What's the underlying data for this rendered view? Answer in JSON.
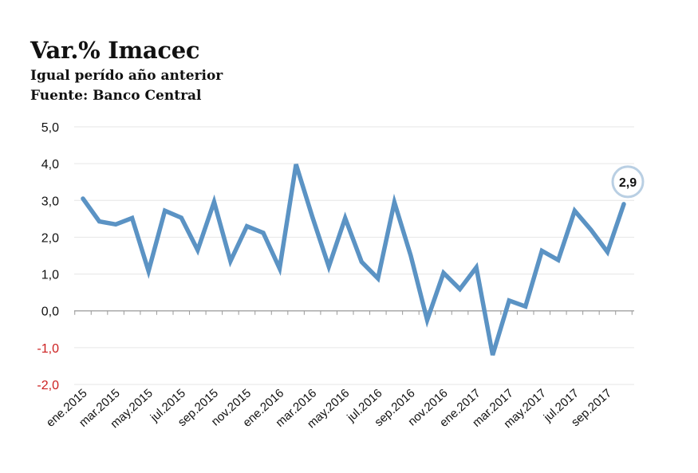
{
  "header": {
    "title": "Var.% Imacec",
    "subtitle": "Igual perído año anterior",
    "source": "Fuente: Banco Central"
  },
  "colors": {
    "line": "#5b93c4",
    "negative_tick": "#cc1f1f",
    "positive_tick": "#111111",
    "grid": "#e6e6e6",
    "axis": "#999999"
  },
  "chart_data": {
    "type": "line",
    "title": "Var.% Imacec",
    "subtitle": "Igual perído año anterior",
    "xlabel": "",
    "ylabel": "",
    "ylim": [
      -2,
      5
    ],
    "yticks": [
      "-2,0",
      "-1,0",
      "0,0",
      "1,0",
      "2,0",
      "3,0",
      "4,0",
      "5,0"
    ],
    "ytick_values": [
      -2,
      -1,
      0,
      1,
      2,
      3,
      4,
      5
    ],
    "x": [
      "ene.2015",
      "feb.2015",
      "mar.2015",
      "abr.2015",
      "may.2015",
      "jun.2015",
      "jul.2015",
      "ago.2015",
      "sep.2015",
      "oct.2015",
      "nov.2015",
      "dic.2015",
      "ene.2016",
      "feb.2016",
      "mar.2016",
      "abr.2016",
      "may.2016",
      "jun.2016",
      "jul.2016",
      "ago.2016",
      "sep.2016",
      "oct.2016",
      "nov.2016",
      "dic.2016",
      "ene.2017",
      "feb.2017",
      "mar.2017",
      "abr.2017",
      "may.2017",
      "jun.2017",
      "jul.2017",
      "ago.2017",
      "sep.2017",
      "oct.2017"
    ],
    "xtick_labels": [
      "ene.2015",
      "mar.2015",
      "may.2015",
      "jul.2015",
      "sep.2015",
      "nov.2015",
      "ene.2016",
      "mar.2016",
      "may.2016",
      "jul.2016",
      "sep.2016",
      "nov.2016",
      "ene.2017",
      "mar.2017",
      "may.2017",
      "jul.2017",
      "sep.2017"
    ],
    "series": [
      {
        "values": [
          3.05,
          2.43,
          2.35,
          2.52,
          1.08,
          2.72,
          2.53,
          1.65,
          2.96,
          1.35,
          2.3,
          2.12,
          1.15,
          3.98,
          2.55,
          1.2,
          2.52,
          1.33,
          0.88,
          2.95,
          1.5,
          -0.25,
          1.03,
          0.59,
          1.18,
          -1.2,
          0.28,
          0.12,
          1.63,
          1.38,
          2.72,
          2.2,
          1.6,
          2.9
        ]
      }
    ],
    "annotations": [
      {
        "index": 33,
        "text": "2,9"
      }
    ],
    "grid": true,
    "legend": "none"
  }
}
